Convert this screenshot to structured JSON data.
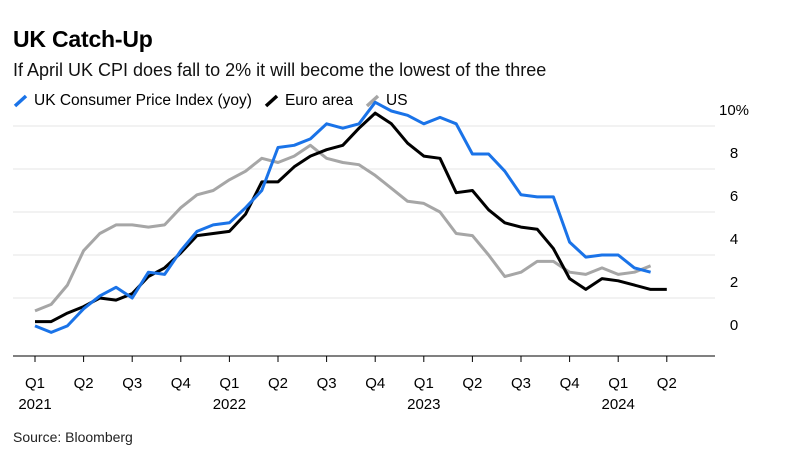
{
  "title": "UK Catch-Up",
  "subtitle": "If April UK CPI does fall to 2% it will become the lowest of the three",
  "source": "Source: Bloomberg",
  "colors": {
    "uk": "#1a73e8",
    "euro": "#000000",
    "us": "#a6a6a6",
    "grid": "#e6e6e6",
    "axis": "#000000"
  },
  "chart_data": {
    "type": "line",
    "title": "UK Catch-Up",
    "subtitle": "If April UK CPI does fall to 2% it will become the lowest of the three",
    "ylim": [
      0,
      10
    ],
    "y_ticks": [
      0,
      2,
      4,
      6,
      8,
      10
    ],
    "y_tick_labels": [
      "0",
      "2",
      "4",
      "6",
      "8",
      "10%"
    ],
    "x_ticks": [
      "Q1",
      "Q2",
      "Q3",
      "Q4",
      "Q1",
      "Q2",
      "Q3",
      "Q4",
      "Q1",
      "Q2",
      "Q3",
      "Q4",
      "Q1",
      "Q2"
    ],
    "x_year_labels": [
      {
        "label": "2021",
        "tick": 0
      },
      {
        "label": "2022",
        "tick": 4
      },
      {
        "label": "2023",
        "tick": 8
      },
      {
        "label": "2024",
        "tick": 12
      }
    ],
    "x_start": "2021-01",
    "x_step": "month",
    "legend_position": "top-left",
    "grid": true,
    "series": [
      {
        "name": "UK Consumer Price Index (yoy)",
        "color": "#1a73e8",
        "values": [
          0.7,
          0.4,
          0.7,
          1.5,
          2.1,
          2.5,
          2.0,
          3.2,
          3.1,
          4.2,
          5.1,
          5.4,
          5.5,
          6.2,
          7.0,
          9.0,
          9.1,
          9.4,
          10.1,
          9.9,
          10.1,
          11.1,
          10.7,
          10.5,
          10.1,
          10.4,
          10.1,
          8.7,
          8.7,
          7.9,
          6.8,
          6.7,
          6.7,
          4.6,
          3.9,
          4.0,
          4.0,
          3.4,
          3.2
        ]
      },
      {
        "name": "Euro area",
        "color": "#000000",
        "values": [
          0.9,
          0.9,
          1.3,
          1.6,
          2.0,
          1.9,
          2.2,
          3.0,
          3.4,
          4.1,
          4.9,
          5.0,
          5.1,
          5.9,
          7.4,
          7.4,
          8.1,
          8.6,
          8.9,
          9.1,
          9.9,
          10.6,
          10.1,
          9.2,
          8.6,
          8.5,
          6.9,
          7.0,
          6.1,
          5.5,
          5.3,
          5.2,
          4.3,
          2.9,
          2.4,
          2.9,
          2.8,
          2.6,
          2.4,
          2.4
        ]
      },
      {
        "name": "US",
        "color": "#a6a6a6",
        "values": [
          1.4,
          1.7,
          2.6,
          4.2,
          5.0,
          5.4,
          5.4,
          5.3,
          5.4,
          6.2,
          6.8,
          7.0,
          7.5,
          7.9,
          8.5,
          8.3,
          8.6,
          9.1,
          8.5,
          8.3,
          8.2,
          7.7,
          7.1,
          6.5,
          6.4,
          6.0,
          5.0,
          4.9,
          4.0,
          3.0,
          3.2,
          3.7,
          3.7,
          3.2,
          3.1,
          3.4,
          3.1,
          3.2,
          3.5
        ]
      }
    ]
  }
}
